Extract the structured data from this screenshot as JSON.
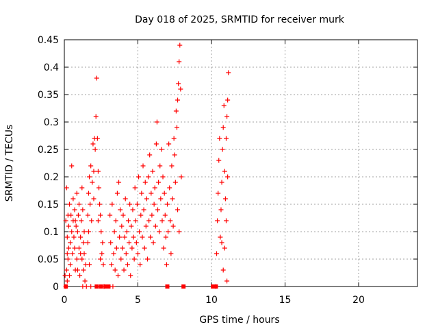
{
  "chart_data": {
    "type": "scatter",
    "title": "Day 018 of 2025, SRMTID for receiver murk",
    "xlabel": "GPS time / hours",
    "ylabel": "SRMTID / TECUs",
    "xlim": [
      0,
      24
    ],
    "ylim": [
      0,
      0.45
    ],
    "xticks": [
      0,
      5,
      10,
      15,
      20
    ],
    "yticks": [
      0,
      0.05,
      0.1,
      0.15,
      0.2,
      0.25,
      0.3,
      0.35,
      0.4,
      0.45
    ],
    "xtick_labels": [
      "0",
      "5",
      "10",
      "15",
      "20"
    ],
    "ytick_labels": [
      "0",
      "0.05",
      "0.1",
      "0.15",
      "0.2",
      "0.25",
      "0.3",
      "0.35",
      "0.4",
      "0.45"
    ],
    "grid": true,
    "marker_color": "#ff0000",
    "series": [
      {
        "points": [
          [
            0.05,
            0.02
          ],
          [
            0.1,
            0.0
          ],
          [
            0.15,
            0.03
          ],
          [
            0.2,
            0.06
          ],
          [
            0.1,
            0.12
          ],
          [
            0.15,
            0.18
          ],
          [
            0.2,
            0.09
          ],
          [
            0.25,
            0.13
          ],
          [
            0.3,
            0.07
          ],
          [
            0.35,
            0.02
          ],
          [
            0.2,
            0.01
          ],
          [
            0.25,
            0.05
          ],
          [
            0.3,
            0.11
          ],
          [
            0.35,
            0.15
          ],
          [
            0.4,
            0.08
          ],
          [
            0.45,
            0.13
          ],
          [
            0.5,
            0.22
          ],
          [
            0.4,
            0.04
          ],
          [
            0.5,
            0.1
          ],
          [
            0.55,
            0.06
          ],
          [
            0.6,
            0.16
          ],
          [
            0.6,
            0.12
          ],
          [
            0.65,
            0.09
          ],
          [
            0.7,
            0.14
          ],
          [
            0.75,
            0.03
          ],
          [
            0.7,
            0.07
          ],
          [
            0.8,
            0.11
          ],
          [
            0.85,
            0.17
          ],
          [
            0.9,
            0.1
          ],
          [
            0.85,
            0.05
          ],
          [
            0.95,
            0.13
          ],
          [
            1.0,
            0.07
          ],
          [
            1.0,
            0.15
          ],
          [
            1.05,
            0.02
          ],
          [
            1.1,
            0.09
          ],
          [
            1.15,
            0.12
          ],
          [
            1.2,
            0.05
          ],
          [
            1.25,
            0.0
          ],
          [
            1.3,
            0.08
          ],
          [
            1.25,
            0.14
          ],
          [
            1.3,
            0.03
          ],
          [
            1.35,
            0.06
          ],
          [
            1.4,
            0.01
          ],
          [
            1.45,
            0.04
          ],
          [
            1.5,
            0.0
          ],
          [
            1.35,
            0.1
          ],
          [
            1.2,
            0.18
          ],
          [
            1.1,
            0.06
          ],
          [
            0.9,
            0.03
          ],
          [
            0.75,
            0.12
          ],
          [
            1.6,
            0.13
          ],
          [
            1.65,
            0.17
          ],
          [
            1.7,
            0.2
          ],
          [
            1.65,
            0.1
          ],
          [
            1.75,
            0.15
          ],
          [
            1.8,
            0.22
          ],
          [
            1.85,
            0.12
          ],
          [
            1.9,
            0.19
          ],
          [
            1.95,
            0.26
          ],
          [
            2.0,
            0.21
          ],
          [
            2.05,
            0.27
          ],
          [
            2.0,
            0.16
          ],
          [
            1.6,
            0.08
          ],
          [
            1.7,
            0.04
          ],
          [
            1.8,
            0.0
          ],
          [
            2.1,
            0.25
          ],
          [
            2.15,
            0.31
          ],
          [
            2.2,
            0.38
          ],
          [
            2.25,
            0.27
          ],
          [
            2.3,
            0.21
          ],
          [
            2.35,
            0.18
          ],
          [
            2.4,
            0.15
          ],
          [
            2.45,
            0.13
          ],
          [
            2.5,
            0.1
          ],
          [
            2.55,
            0.06
          ],
          [
            2.6,
            0.08
          ],
          [
            2.65,
            0.04
          ],
          [
            2.7,
            0.0
          ],
          [
            2.3,
            0.12
          ],
          [
            2.45,
            0.05
          ],
          [
            3.1,
            0.13
          ],
          [
            3.15,
            0.08
          ],
          [
            3.2,
            0.04
          ],
          [
            3.25,
            0.15
          ],
          [
            3.3,
            0.0
          ],
          [
            3.35,
            0.06
          ],
          [
            3.4,
            0.1
          ],
          [
            3.45,
            0.03
          ],
          [
            3.5,
            0.12
          ],
          [
            3.55,
            0.07
          ],
          [
            3.6,
            0.17
          ],
          [
            3.65,
            0.02
          ],
          [
            3.7,
            0.19
          ],
          [
            3.75,
            0.09
          ],
          [
            3.8,
            0.14
          ],
          [
            3.85,
            0.05
          ],
          [
            3.9,
            0.11
          ],
          [
            3.95,
            0.07
          ],
          [
            4.0,
            0.13
          ],
          [
            4.05,
            0.03
          ],
          [
            4.1,
            0.09
          ],
          [
            4.15,
            0.16
          ],
          [
            4.2,
            0.06
          ],
          [
            4.25,
            0.1
          ],
          [
            4.3,
            0.04
          ],
          [
            4.35,
            0.12
          ],
          [
            4.4,
            0.08
          ],
          [
            4.45,
            0.15
          ],
          [
            4.5,
            0.02
          ],
          [
            4.55,
            0.11
          ],
          [
            4.6,
            0.07
          ],
          [
            4.65,
            0.14
          ],
          [
            4.7,
            0.09
          ],
          [
            4.75,
            0.05
          ],
          [
            4.8,
            0.18
          ],
          [
            4.85,
            0.12
          ],
          [
            4.9,
            0.08
          ],
          [
            4.95,
            0.15
          ],
          [
            5.0,
            0.06
          ],
          [
            5.05,
            0.2
          ],
          [
            5.1,
            0.1
          ],
          [
            5.15,
            0.04
          ],
          [
            5.2,
            0.13
          ],
          [
            5.25,
            0.17
          ],
          [
            5.3,
            0.09
          ],
          [
            5.35,
            0.22
          ],
          [
            5.4,
            0.14
          ],
          [
            5.45,
            0.07
          ],
          [
            5.5,
            0.19
          ],
          [
            5.55,
            0.11
          ],
          [
            5.6,
            0.16
          ],
          [
            5.65,
            0.05
          ],
          [
            5.7,
            0.2
          ],
          [
            5.75,
            0.12
          ],
          [
            5.8,
            0.24
          ],
          [
            5.85,
            0.09
          ],
          [
            5.9,
            0.17
          ],
          [
            5.95,
            0.13
          ],
          [
            6.0,
            0.21
          ],
          [
            6.05,
            0.08
          ],
          [
            6.1,
            0.15
          ],
          [
            6.15,
            0.18
          ],
          [
            6.2,
            0.11
          ],
          [
            6.25,
            0.26
          ],
          [
            6.3,
            0.3
          ],
          [
            6.35,
            0.14
          ],
          [
            6.4,
            0.19
          ],
          [
            6.45,
            0.1
          ],
          [
            6.5,
            0.22
          ],
          [
            6.55,
            0.16
          ],
          [
            6.6,
            0.25
          ],
          [
            6.65,
            0.12
          ],
          [
            6.7,
            0.2
          ],
          [
            6.75,
            0.07
          ],
          [
            6.8,
            0.17
          ],
          [
            6.85,
            0.13
          ],
          [
            6.9,
            0.09
          ],
          [
            6.95,
            0.04
          ],
          [
            7.0,
            0.15
          ],
          [
            7.05,
            0.1
          ],
          [
            7.1,
            0.26
          ],
          [
            7.15,
            0.18
          ],
          [
            7.2,
            0.12
          ],
          [
            7.25,
            0.06
          ],
          [
            7.3,
            0.22
          ],
          [
            7.35,
            0.16
          ],
          [
            7.4,
            0.11
          ],
          [
            7.45,
            0.27
          ],
          [
            7.5,
            0.24
          ],
          [
            7.55,
            0.19
          ],
          [
            7.6,
            0.32
          ],
          [
            7.65,
            0.29
          ],
          [
            7.7,
            0.34
          ],
          [
            7.75,
            0.37
          ],
          [
            7.8,
            0.41
          ],
          [
            7.85,
            0.44
          ],
          [
            7.9,
            0.36
          ],
          [
            7.95,
            0.2
          ],
          [
            7.7,
            0.14
          ],
          [
            7.8,
            0.1
          ],
          [
            10.3,
            0.0
          ],
          [
            10.35,
            0.06
          ],
          [
            10.4,
            0.12
          ],
          [
            10.45,
            0.17
          ],
          [
            10.5,
            0.23
          ],
          [
            10.55,
            0.27
          ],
          [
            10.6,
            0.09
          ],
          [
            10.65,
            0.14
          ],
          [
            10.7,
            0.19
          ],
          [
            10.75,
            0.25
          ],
          [
            10.8,
            0.29
          ],
          [
            10.85,
            0.33
          ],
          [
            10.9,
            0.21
          ],
          [
            10.95,
            0.16
          ],
          [
            11.0,
            0.27
          ],
          [
            11.05,
            0.31
          ],
          [
            11.1,
            0.34
          ],
          [
            11.15,
            0.39
          ],
          [
            11.0,
            0.12
          ],
          [
            10.9,
            0.07
          ],
          [
            10.8,
            0.03
          ],
          [
            11.05,
            0.01
          ],
          [
            11.1,
            0.2
          ],
          [
            10.7,
            0.08
          ]
        ]
      }
    ],
    "baseline_markers_x": [
      0.1,
      2.2,
      2.5,
      2.8,
      3.0,
      7.0,
      8.1,
      10.1,
      10.3
    ]
  }
}
